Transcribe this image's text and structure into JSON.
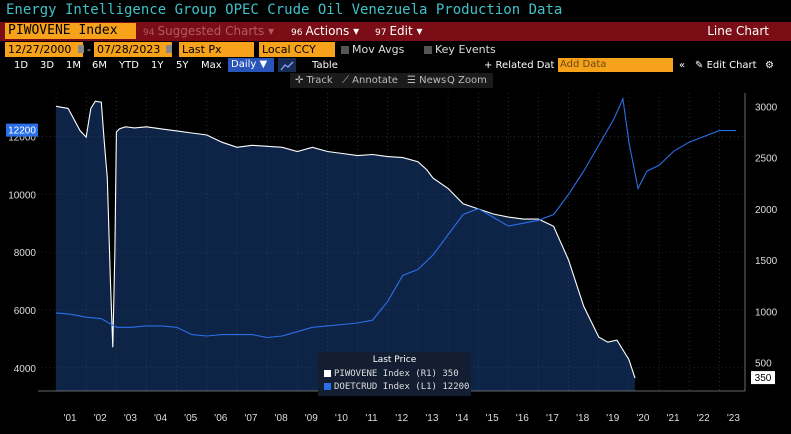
{
  "title": "Energy Intelligence Group OPEC Crude Oil Venezuela Production Data",
  "toolbar": {
    "ticker": "PIWOVENE Index",
    "suggested_num": "94",
    "suggested": "Suggested Charts ▾",
    "actions_num": "96",
    "actions": "Actions ▾",
    "edit_num": "97",
    "edit": "Edit ▾",
    "chart_type": "Line Chart"
  },
  "controls": {
    "start_date": "12/27/2000",
    "end_date": "07/28/2023",
    "field": "Last Px",
    "currency": "Local CCY",
    "mov_avgs": "Mov Avgs",
    "key_events": "Key Events"
  },
  "ranges": [
    "1D",
    "3D",
    "1M",
    "6M",
    "YTD",
    "1Y",
    "5Y",
    "Max"
  ],
  "period": "Daily ▼",
  "table_label": "Table",
  "related": "+ Related Data",
  "add_data": "Add Data",
  "edit_chart": "Edit Chart",
  "tools": [
    "✛ Track",
    "⟋ Annotate",
    "☰ News",
    "Q Zoom"
  ],
  "legend": {
    "header": "Last Price",
    "items": [
      {
        "label": "PIWOVENE Index  (R1)   350",
        "color": "#ffffff"
      },
      {
        "label": "DOETCRUD Index  (L1) 12200",
        "color": "#2b6fe8"
      }
    ]
  },
  "chart_data": {
    "type": "line",
    "x_ticks": [
      "'01",
      "'02",
      "'03",
      "'04",
      "'05",
      "'06",
      "'07",
      "'08",
      "'09",
      "'10",
      "'11",
      "'12",
      "'13",
      "'14",
      "'15",
      "'16",
      "'17",
      "'18",
      "'19",
      "'20",
      "'21",
      "'22",
      "'23"
    ],
    "left_axis": {
      "ticks": [
        4000,
        6000,
        8000,
        10000,
        12000
      ],
      "range": [
        3200,
        13500
      ],
      "current_label": "12200"
    },
    "right_axis": {
      "ticks": [
        500,
        1000,
        1500,
        2000,
        2500,
        3000
      ],
      "range": [
        224,
        3130
      ],
      "current_label": "350"
    },
    "series": [
      {
        "name": "PIWOVENE Index",
        "axis": "right",
        "color": "#ffffff",
        "x": [
          2001.0,
          2001.4,
          2001.8,
          2002.0,
          2002.15,
          2002.3,
          2002.5,
          2002.6,
          2002.7,
          2002.8,
          2002.88,
          2002.95,
          2003.0,
          2003.1,
          2003.3,
          2003.6,
          2004.0,
          2004.5,
          2005.0,
          2005.5,
          2006.0,
          2006.5,
          2007.0,
          2007.5,
          2008.0,
          2008.5,
          2009.0,
          2009.5,
          2010.0,
          2010.5,
          2011.0,
          2011.5,
          2012.0,
          2012.5,
          2013.0,
          2013.3,
          2013.5,
          2014.0,
          2014.5,
          2015.0,
          2015.5,
          2016.0,
          2016.5,
          2017.0,
          2017.5,
          2018.0,
          2018.5,
          2019.0,
          2019.3,
          2019.6,
          2020.0,
          2020.2
        ],
        "values": [
          3000,
          2980,
          2760,
          2700,
          2980,
          3050,
          3040,
          2650,
          2300,
          1300,
          650,
          1600,
          2750,
          2780,
          2800,
          2790,
          2800,
          2780,
          2760,
          2740,
          2720,
          2650,
          2600,
          2620,
          2610,
          2600,
          2560,
          2600,
          2560,
          2540,
          2520,
          2530,
          2510,
          2500,
          2460,
          2380,
          2300,
          2200,
          2050,
          2000,
          1950,
          1920,
          1900,
          1900,
          1830,
          1500,
          1050,
          750,
          700,
          720,
          530,
          350
        ]
      },
      {
        "name": "DOETCRUD Index",
        "axis": "left",
        "color": "#2b6fe8",
        "x": [
          2001.0,
          2001.5,
          2002.0,
          2002.5,
          2003.0,
          2003.5,
          2004.0,
          2004.5,
          2005.0,
          2005.5,
          2006.0,
          2006.5,
          2007.0,
          2007.5,
          2008.0,
          2008.5,
          2009.0,
          2009.5,
          2010.0,
          2010.5,
          2011.0,
          2011.5,
          2012.0,
          2012.5,
          2013.0,
          2013.5,
          2014.0,
          2014.5,
          2015.0,
          2015.5,
          2016.0,
          2016.5,
          2017.0,
          2017.5,
          2018.0,
          2018.5,
          2019.0,
          2019.5,
          2019.8,
          2020.0,
          2020.3,
          2020.6,
          2021.0,
          2021.5,
          2022.0,
          2022.5,
          2023.0,
          2023.55
        ],
        "values": [
          5900,
          5850,
          5750,
          5700,
          5400,
          5400,
          5450,
          5450,
          5400,
          5150,
          5100,
          5150,
          5150,
          5150,
          5050,
          5100,
          5250,
          5400,
          5450,
          5500,
          5550,
          5650,
          6300,
          7200,
          7400,
          7900,
          8600,
          9300,
          9500,
          9200,
          8900,
          9000,
          9100,
          9300,
          10000,
          10800,
          11700,
          12600,
          13300,
          11800,
          10200,
          10800,
          11000,
          11500,
          11800,
          12000,
          12200,
          12200
        ]
      }
    ]
  }
}
